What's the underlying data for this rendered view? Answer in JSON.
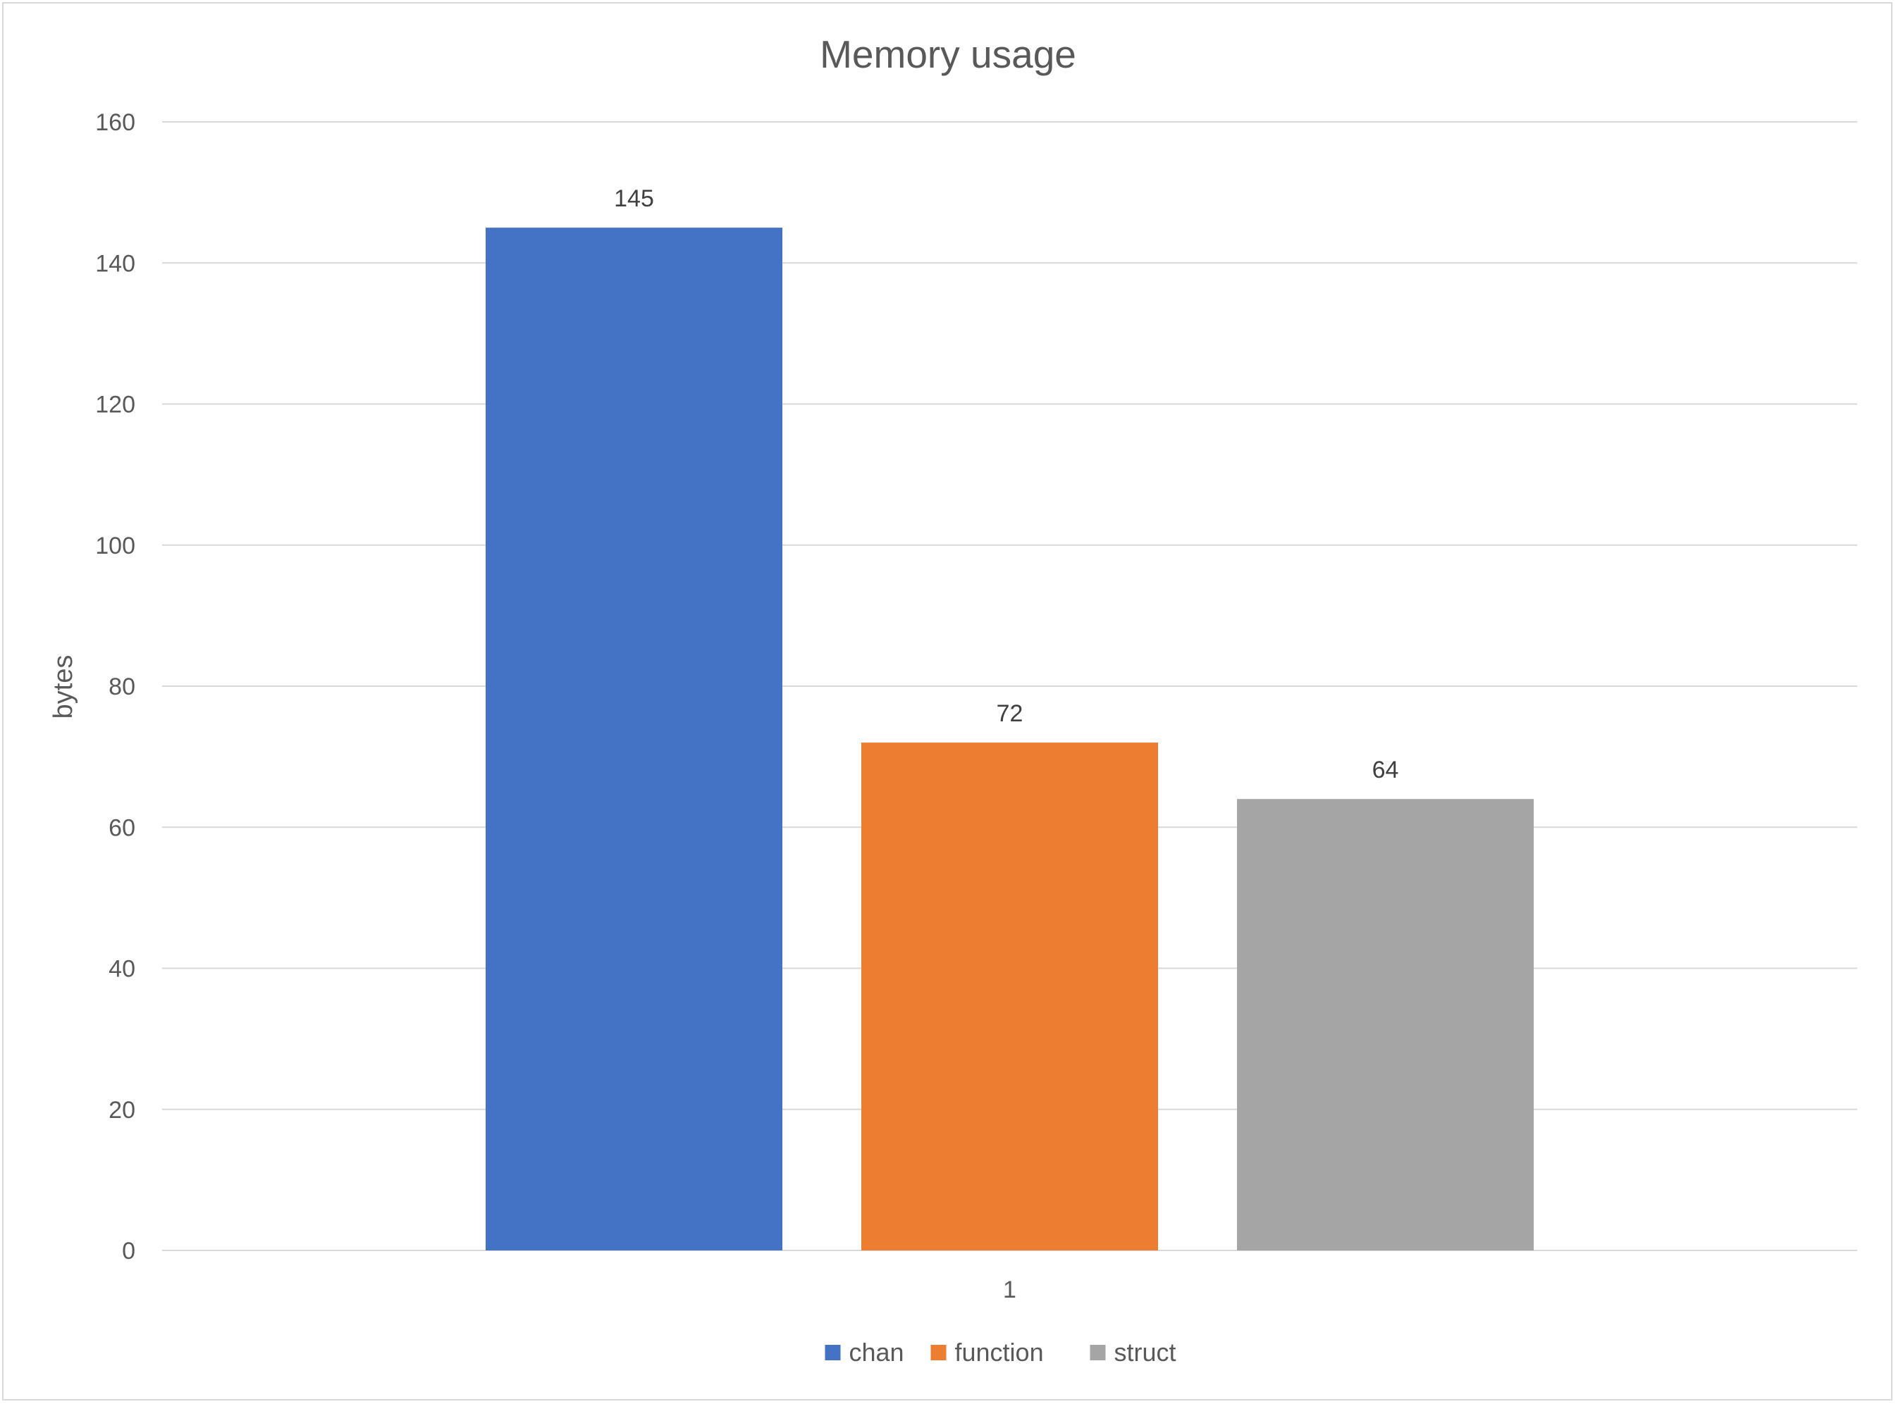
{
  "chart_data": {
    "type": "bar",
    "title": "Memory usage",
    "xlabel": "",
    "ylabel": "bytes",
    "categories": [
      "1"
    ],
    "series": [
      {
        "name": "chan",
        "values": [
          145
        ],
        "color": "#4472c4"
      },
      {
        "name": "function",
        "values": [
          72
        ],
        "color": "#ed7d31"
      },
      {
        "name": "struct",
        "values": [
          64
        ],
        "color": "#a5a5a5"
      }
    ],
    "ylim": [
      0,
      160
    ],
    "yticks": [
      "0",
      "20",
      "40",
      "60",
      "80",
      "100",
      "120",
      "140",
      "160"
    ],
    "data_labels": [
      "145",
      "72",
      "64"
    ],
    "grid": true,
    "legend_position": "bottom"
  }
}
